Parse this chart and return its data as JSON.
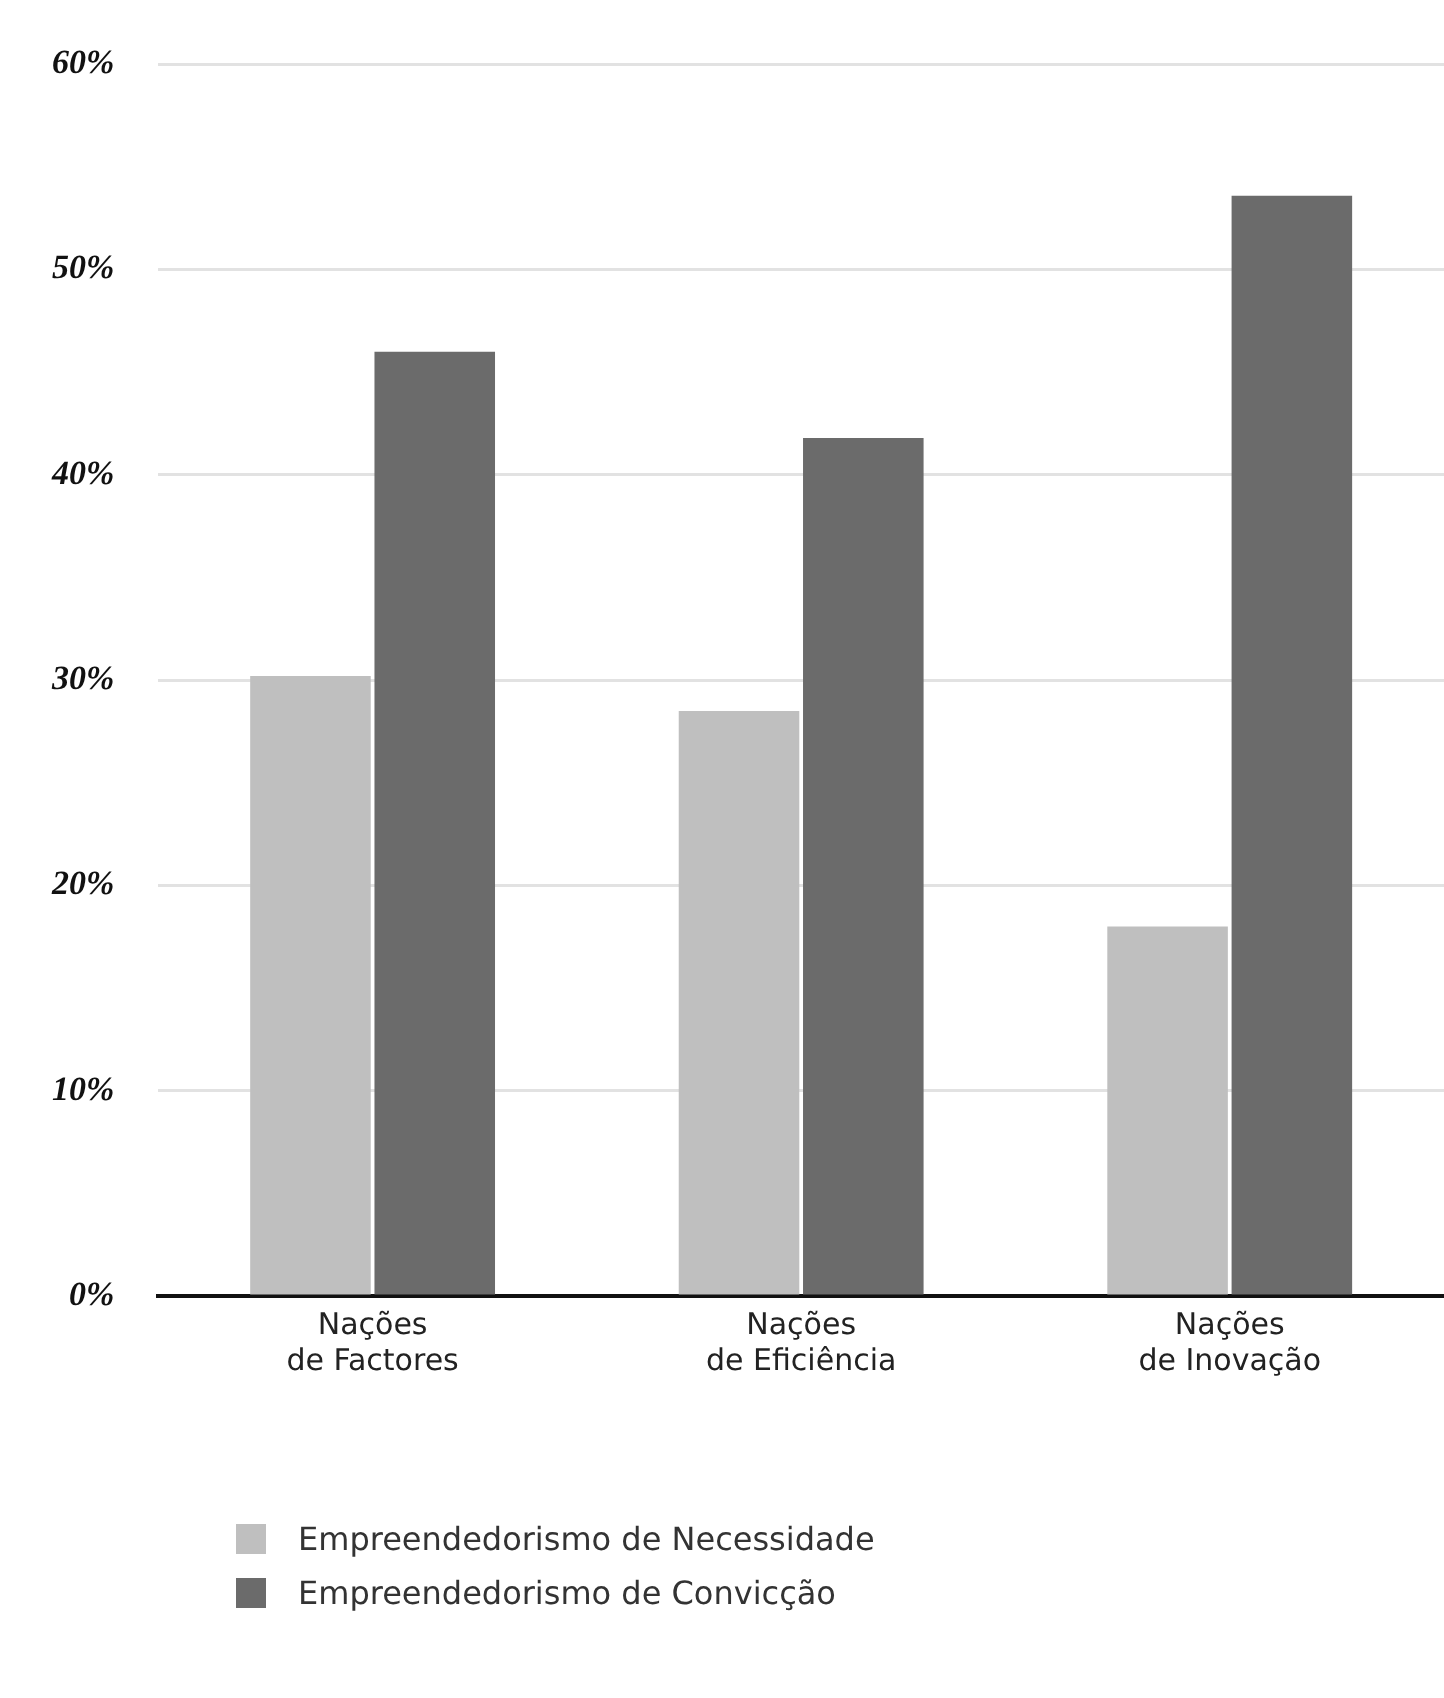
{
  "chart_data": {
    "type": "bar",
    "categories": [
      "Nações\nde Factores",
      "Nações\nde Eficiência",
      "Nações\nde Inovação"
    ],
    "series": [
      {
        "name": "Empreendedorismo de Necessidade",
        "color": "#bfbfbf",
        "values": [
          30.2,
          28.5,
          18.0
        ]
      },
      {
        "name": "Empreendedorismo de Convicção",
        "color": "#6b6b6b",
        "values": [
          46.0,
          41.8,
          53.6
        ]
      }
    ],
    "ylim": [
      0,
      60
    ],
    "yticks": [
      {
        "value": 0,
        "label": "0%"
      },
      {
        "value": 10,
        "label": "10%"
      },
      {
        "value": 20,
        "label": "20%"
      },
      {
        "value": 30,
        "label": "30%"
      },
      {
        "value": 40,
        "label": "40%"
      },
      {
        "value": 50,
        "label": "50%"
      },
      {
        "value": 60,
        "label": "60%"
      }
    ],
    "grid": "y",
    "legend": "bottom left"
  }
}
